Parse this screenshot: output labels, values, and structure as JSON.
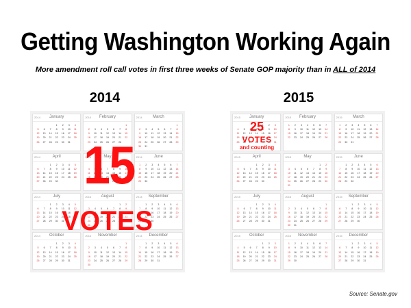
{
  "title": "Getting Washington Working Again",
  "subtitle": {
    "before": "More amendment roll call votes in first three weeks of Senate GOP majority than in ",
    "underlined": "ALL of 2014"
  },
  "left": {
    "year": "2014",
    "year_small": "2014",
    "big_number": "15",
    "big_label": "VOTES"
  },
  "right": {
    "year": "2015",
    "year_small": "2015",
    "big_number": "25",
    "big_label": "VOTES",
    "sub_label": "and counting"
  },
  "months": [
    "January",
    "February",
    "March",
    "April",
    "May",
    "June",
    "July",
    "August",
    "September",
    "October",
    "November",
    "December"
  ],
  "source": "Source: Senate.gov",
  "colors": {
    "accent": "#ff1010",
    "weekend": "#d83a3a",
    "panel": "#f1f1f1"
  }
}
